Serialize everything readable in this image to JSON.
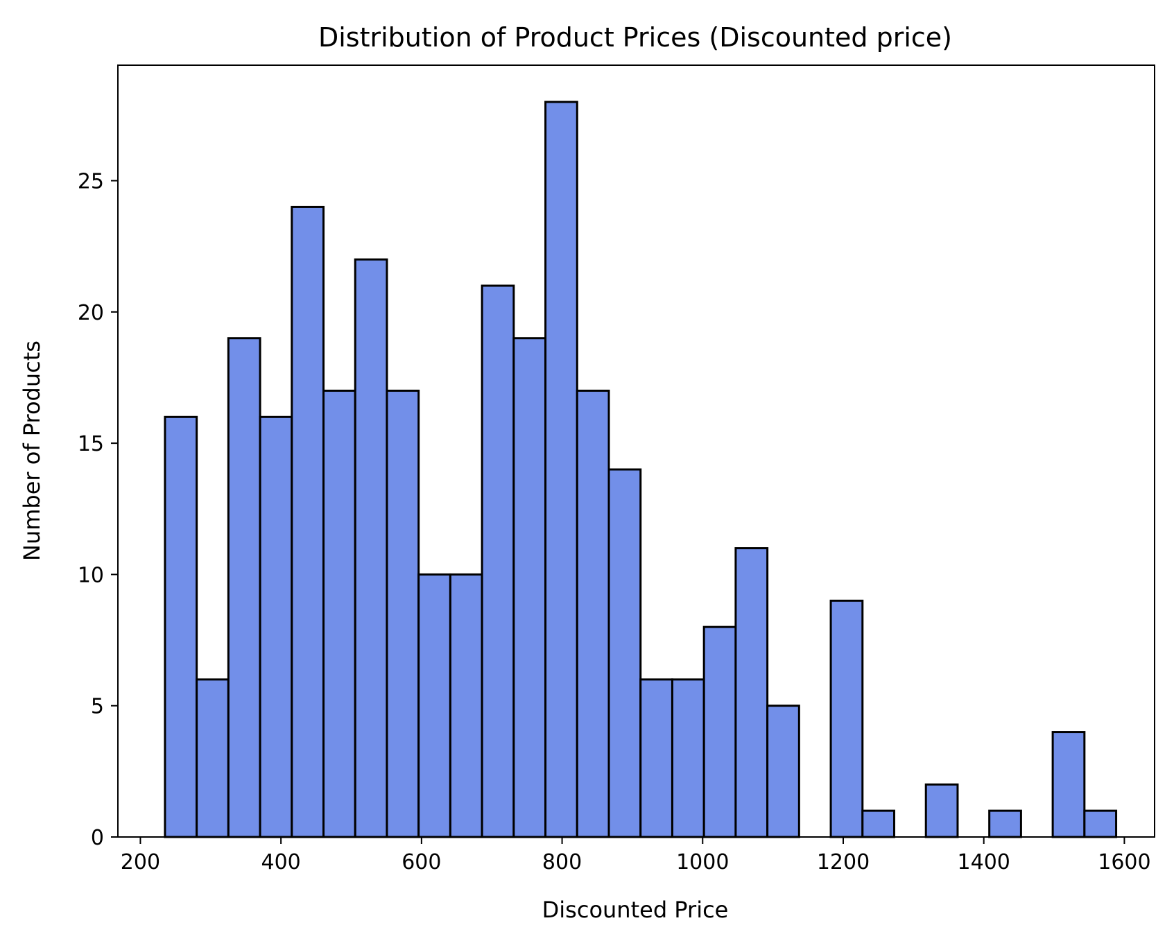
{
  "chart_data": {
    "type": "bar",
    "title": "Distribution of Product Prices (Discounted price)",
    "xlabel": "Discounted Price",
    "ylabel": "Number of Products",
    "xlim": [
      168,
      1643
    ],
    "ylim": [
      0,
      29.4
    ],
    "x_ticks": [
      200,
      400,
      600,
      800,
      1000,
      1200,
      1400,
      1600
    ],
    "y_ticks": [
      0,
      5,
      10,
      15,
      20,
      25
    ],
    "bin_start": 235,
    "bin_width": 45.11,
    "values": [
      16,
      6,
      19,
      16,
      24,
      17,
      22,
      17,
      10,
      10,
      21,
      19,
      28,
      17,
      14,
      6,
      6,
      8,
      11,
      5,
      0,
      9,
      1,
      0,
      2,
      0,
      1,
      0,
      4,
      1
    ],
    "bar_color": "#728FE9",
    "edge_color": "#000000",
    "grid": false,
    "legend": "none"
  }
}
